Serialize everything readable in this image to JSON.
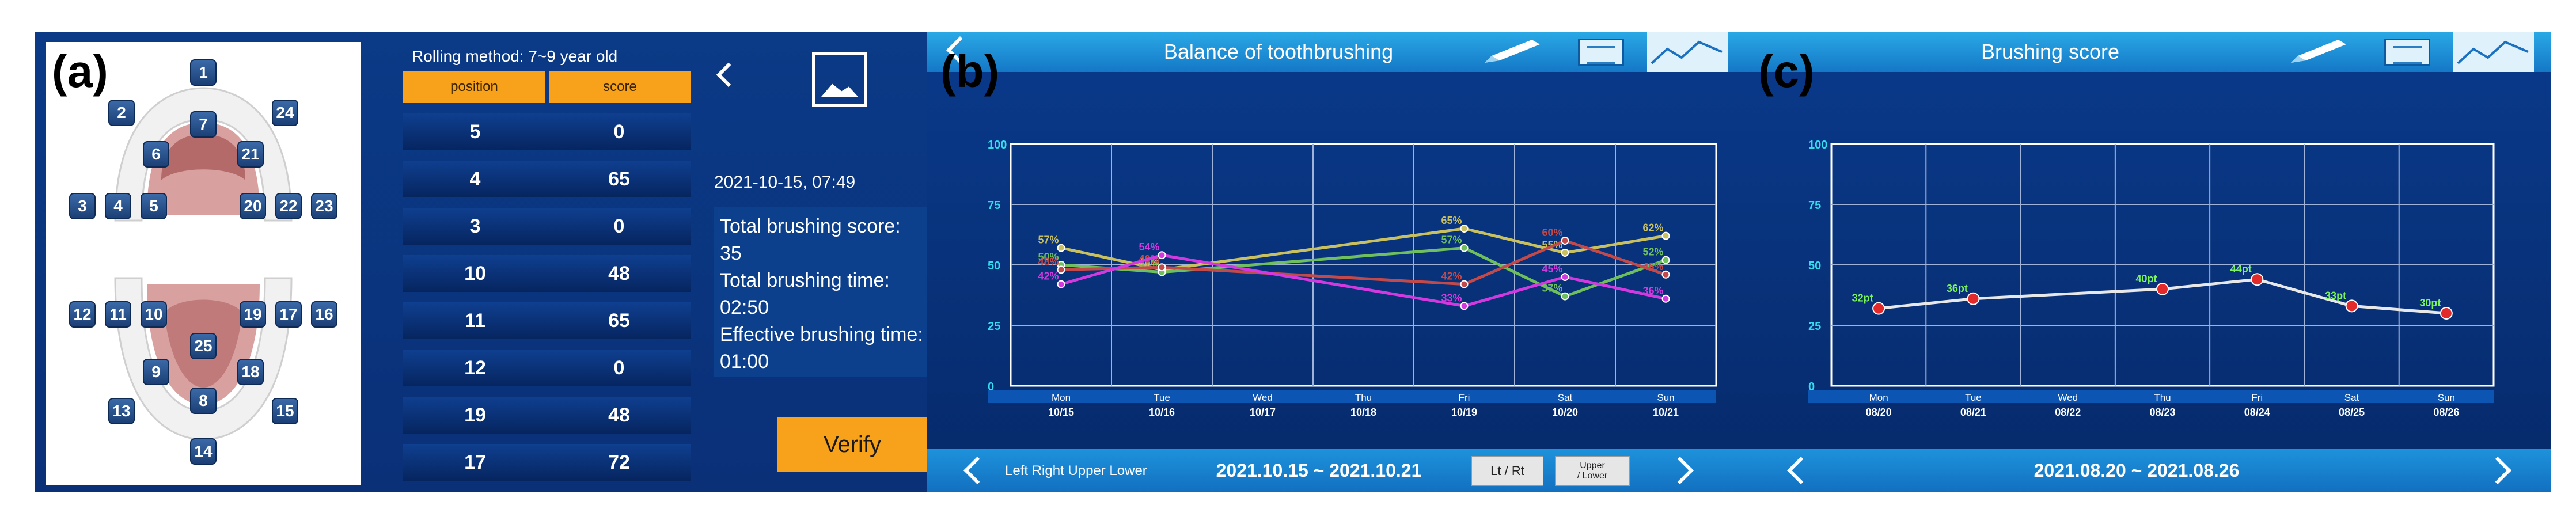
{
  "panel_labels": {
    "a": "(a)",
    "b": "(b)",
    "c": "(c)"
  },
  "tooth_map": {
    "teeth": [
      "1",
      "2",
      "24",
      "7",
      "6",
      "21",
      "3",
      "4",
      "5",
      "20",
      "22",
      "23",
      "12",
      "11",
      "10",
      "19",
      "17",
      "16",
      "25",
      "9",
      "18",
      "8",
      "13",
      "15",
      "14"
    ]
  },
  "score_table": {
    "rolling_method": "Rolling method: 7~9 year old",
    "headers": [
      "position",
      "score"
    ],
    "rows": [
      {
        "position": "5",
        "score": "0"
      },
      {
        "position": "4",
        "score": "65"
      },
      {
        "position": "3",
        "score": "0"
      },
      {
        "position": "10",
        "score": "48"
      },
      {
        "position": "11",
        "score": "65"
      },
      {
        "position": "12",
        "score": "0"
      },
      {
        "position": "19",
        "score": "48"
      },
      {
        "position": "17",
        "score": "72"
      }
    ]
  },
  "detail": {
    "datetime": "2021-10-15, 07:49",
    "total_score_label": "Total brushing score:",
    "total_score": "35",
    "total_time_label": "Total brushing time:",
    "total_time": "02:50",
    "effective_time_label": "Effective brushing time:",
    "effective_time": "01:00",
    "verify_label": "Verify",
    "back_icon": "chevron-left-icon",
    "image_icon": "image-icon"
  },
  "balance": {
    "title": "Balance of toothbrushing",
    "footer_mode": "Left Right Upper Lower",
    "date_range": "2021.10.15 ~ 2021.10.21",
    "btn_ltrt": "Lt / Rt",
    "btn_ul_top": "Upper",
    "btn_ul_bottom": "/ Lower"
  },
  "score": {
    "title": "Brushing score",
    "date_range": "2021.08.20 ~ 2021.08.26"
  },
  "colors": {
    "accent": "#f7a21a",
    "header_blue": "#1e92dc",
    "panel_blue": "#0a3a8c",
    "tick_cyan": "#33ddee"
  },
  "chart_data": [
    {
      "type": "line",
      "title": "Balance of toothbrushing",
      "ylim": [
        0,
        100
      ],
      "yticks": [
        "0",
        "25",
        "50",
        "75",
        "100"
      ],
      "x_days": [
        "Mon",
        "Tue",
        "Wed",
        "Thu",
        "Fri",
        "Sat",
        "Sun"
      ],
      "x_dates": [
        "10/15",
        "10/16",
        "10/17",
        "10/18",
        "10/19",
        "10/20",
        "10/21"
      ],
      "grid": true,
      "series": [
        {
          "color": "#c9c060",
          "points": [
            [
              0,
              57
            ],
            [
              1,
              48
            ],
            [
              4,
              65
            ],
            [
              5,
              55
            ],
            [
              6,
              62
            ]
          ],
          "labels": [
            "57%",
            "48%",
            "65%",
            "55%",
            "62%"
          ]
        },
        {
          "color": "#6fbf5f",
          "points": [
            [
              0,
              50
            ],
            [
              1,
              47
            ],
            [
              4,
              57
            ],
            [
              5,
              37
            ],
            [
              6,
              52
            ]
          ],
          "labels": [
            "50%",
            "47%",
            "57%",
            "37%",
            "52%"
          ]
        },
        {
          "color": "#c24a4a",
          "points": [
            [
              0,
              48
            ],
            [
              1,
              49
            ],
            [
              4,
              42
            ],
            [
              5,
              60
            ],
            [
              6,
              46
            ]
          ],
          "labels": [
            "48%",
            "49%",
            "42%",
            "60%",
            "46%"
          ]
        },
        {
          "color": "#d23adf",
          "points": [
            [
              0,
              42
            ],
            [
              1,
              54
            ],
            [
              4,
              33
            ],
            [
              5,
              45
            ],
            [
              6,
              36
            ]
          ],
          "labels": [
            "42%",
            "54%",
            "33%",
            "45%",
            "36%"
          ]
        }
      ]
    },
    {
      "type": "line",
      "title": "Brushing score",
      "ylim": [
        0,
        100
      ],
      "yticks": [
        "0",
        "25",
        "50",
        "75",
        "100"
      ],
      "x_days": [
        "Mon",
        "Tue",
        "Wed",
        "Thu",
        "Fri",
        "Sat",
        "Sun"
      ],
      "x_dates": [
        "08/20",
        "08/21",
        "08/22",
        "08/23",
        "08/24",
        "08/25",
        "08/26"
      ],
      "grid": true,
      "series": [
        {
          "color": "#e8e8e8",
          "points": [
            [
              0,
              32
            ],
            [
              1,
              36
            ],
            [
              3,
              40
            ],
            [
              4,
              44
            ],
            [
              5,
              33
            ],
            [
              6,
              30
            ]
          ],
          "labels": [
            "32pt",
            "36pt",
            "40pt",
            "44pt",
            "33pt",
            "30pt"
          ]
        }
      ]
    }
  ]
}
